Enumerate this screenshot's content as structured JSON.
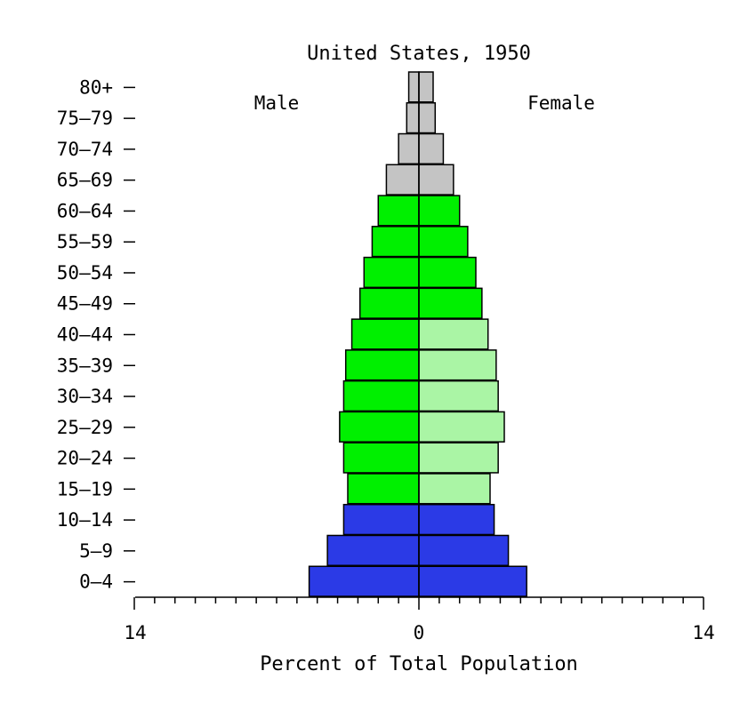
{
  "chart_data": {
    "type": "bar",
    "orientation": "horizontal",
    "title": "United States, 1950",
    "xlabel": "Percent of Total Population",
    "ylabel": "",
    "xlim": [
      -14,
      14
    ],
    "x_ticks": [
      "14",
      "0",
      "14"
    ],
    "categories": [
      "80+",
      "75–79",
      "70–74",
      "65–69",
      "60–64",
      "55–59",
      "50–54",
      "45–49",
      "40–44",
      "35–39",
      "30–34",
      "25–29",
      "20–24",
      "15–19",
      "10–14",
      "5–9",
      "0–4"
    ],
    "series": [
      {
        "name": "Male",
        "values": [
          0.5,
          0.6,
          1.0,
          1.6,
          2.0,
          2.3,
          2.7,
          2.9,
          3.3,
          3.6,
          3.7,
          3.9,
          3.7,
          3.5,
          3.7,
          4.5,
          5.4
        ]
      },
      {
        "name": "Female",
        "values": [
          0.7,
          0.8,
          1.2,
          1.7,
          2.0,
          2.4,
          2.8,
          3.1,
          3.4,
          3.8,
          3.9,
          4.2,
          3.9,
          3.5,
          3.7,
          4.4,
          5.3
        ]
      }
    ],
    "color_groups": [
      {
        "ages": [
          "0–4",
          "5–9",
          "10–14"
        ],
        "male": "#2b3ae6",
        "female": "#2b3ae6"
      },
      {
        "ages": [
          "15–19",
          "20–24",
          "25–29",
          "30–34",
          "35–39",
          "40–44"
        ],
        "male": "#00f000",
        "female": "#aaf5a5"
      },
      {
        "ages": [
          "45–49",
          "50–54",
          "55–59",
          "60–64"
        ],
        "male": "#00f000",
        "female": "#00f000"
      },
      {
        "ages": [
          "65–69",
          "70–74",
          "75–79",
          "80+"
        ],
        "male": "#c4c4c4",
        "female": "#c4c4c4"
      }
    ],
    "annotations": [
      "Male",
      "Female"
    ],
    "grid": false,
    "legend": "none"
  }
}
